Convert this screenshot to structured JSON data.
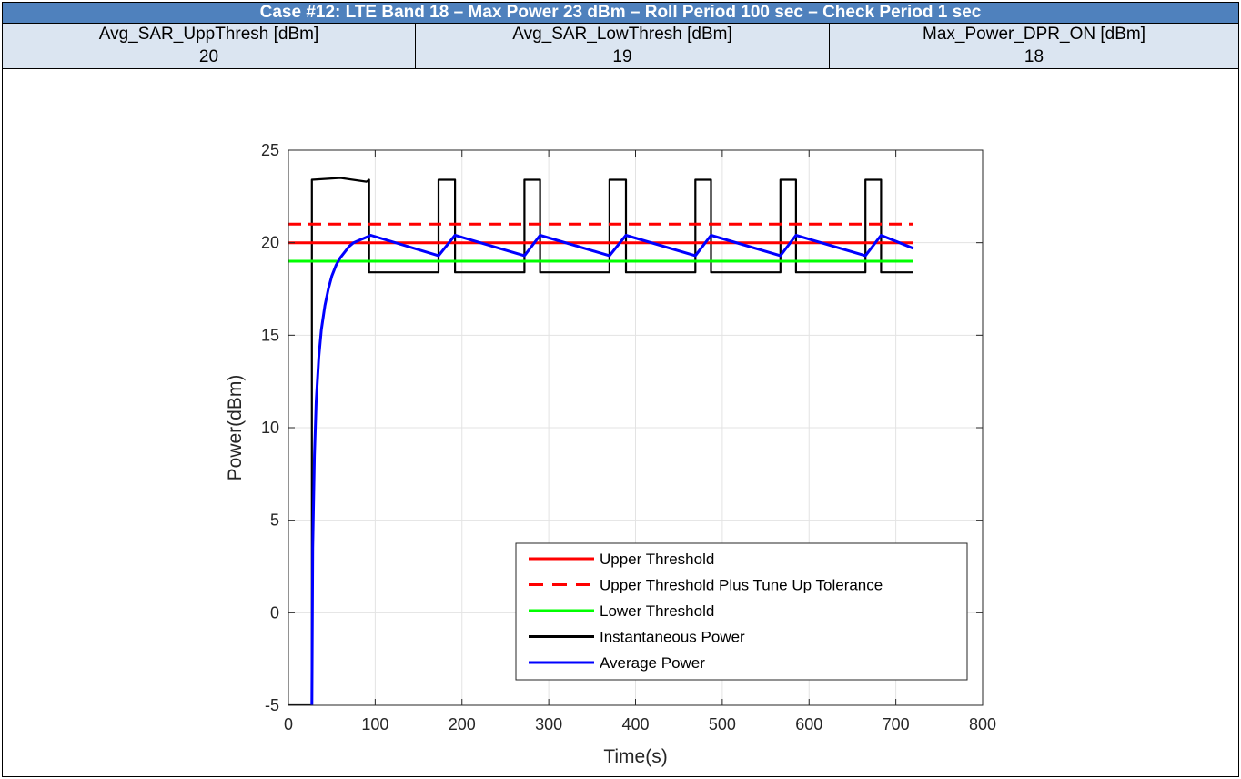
{
  "header": {
    "title": "Case #12: LTE Band 18 – Max Power 23 dBm – Roll Period 100 sec – Check Period 1 sec",
    "columns": [
      "Avg_SAR_UppThresh [dBm]",
      "Avg_SAR_LowThresh [dBm]",
      "Max_Power_DPR_ON [dBm]"
    ],
    "values": [
      "20",
      "19",
      "18"
    ]
  },
  "chart_data": {
    "type": "line",
    "xlabel": "Time(s)",
    "ylabel": "Power(dBm)",
    "xlim": [
      0,
      800
    ],
    "ylim": [
      -5,
      25
    ],
    "xticks": [
      0,
      100,
      200,
      300,
      400,
      500,
      600,
      700,
      800
    ],
    "yticks": [
      -5,
      0,
      5,
      10,
      15,
      20,
      25
    ],
    "grid": true,
    "legend_position": "bottom-right",
    "series": [
      {
        "name": "Upper Threshold",
        "color": "#ff0000",
        "style": "solid",
        "x": [
          0,
          720
        ],
        "y": [
          20,
          20
        ]
      },
      {
        "name": "Upper Threshold Plus Tune Up Tolerance",
        "color": "#ff0000",
        "style": "dashed",
        "x": [
          0,
          720
        ],
        "y": [
          21,
          21
        ]
      },
      {
        "name": "Lower Threshold",
        "color": "#00ff00",
        "style": "solid",
        "x": [
          0,
          720
        ],
        "y": [
          19,
          19
        ]
      },
      {
        "name": "Instantaneous Power",
        "color": "#000000",
        "style": "solid",
        "x": [
          0,
          26,
          27,
          27,
          60,
          90,
          93,
          93,
          173,
          173,
          192,
          192,
          272,
          272,
          290,
          290,
          370,
          370,
          389,
          389,
          469,
          469,
          487,
          487,
          567,
          567,
          585,
          585,
          665,
          665,
          683,
          683,
          720
        ],
        "y": [
          -5,
          -5,
          -5,
          23.4,
          23.5,
          23.3,
          23.4,
          18.4,
          18.4,
          23.4,
          23.4,
          18.4,
          18.4,
          23.4,
          23.4,
          18.4,
          18.4,
          23.4,
          23.4,
          18.4,
          18.4,
          23.4,
          23.4,
          18.4,
          18.4,
          23.4,
          23.4,
          18.4,
          18.4,
          23.4,
          23.4,
          18.4,
          18.4
        ]
      },
      {
        "name": "Average Power",
        "color": "#0000ff",
        "style": "solid",
        "x": [
          27,
          28,
          30,
          32,
          35,
          38,
          42,
          46,
          50,
          55,
          60,
          65,
          70,
          75,
          80,
          85,
          90,
          95,
          173,
          192,
          272,
          290,
          370,
          389,
          469,
          487,
          567,
          585,
          665,
          683,
          720
        ],
        "y": [
          -5,
          3.5,
          8.5,
          11.4,
          13.8,
          15.3,
          16.6,
          17.5,
          18.2,
          18.8,
          19.2,
          19.5,
          19.8,
          20.0,
          20.1,
          20.2,
          20.3,
          20.4,
          19.3,
          20.4,
          19.3,
          20.4,
          19.3,
          20.4,
          19.3,
          20.4,
          19.3,
          20.4,
          19.3,
          20.4,
          19.7
        ]
      }
    ]
  }
}
